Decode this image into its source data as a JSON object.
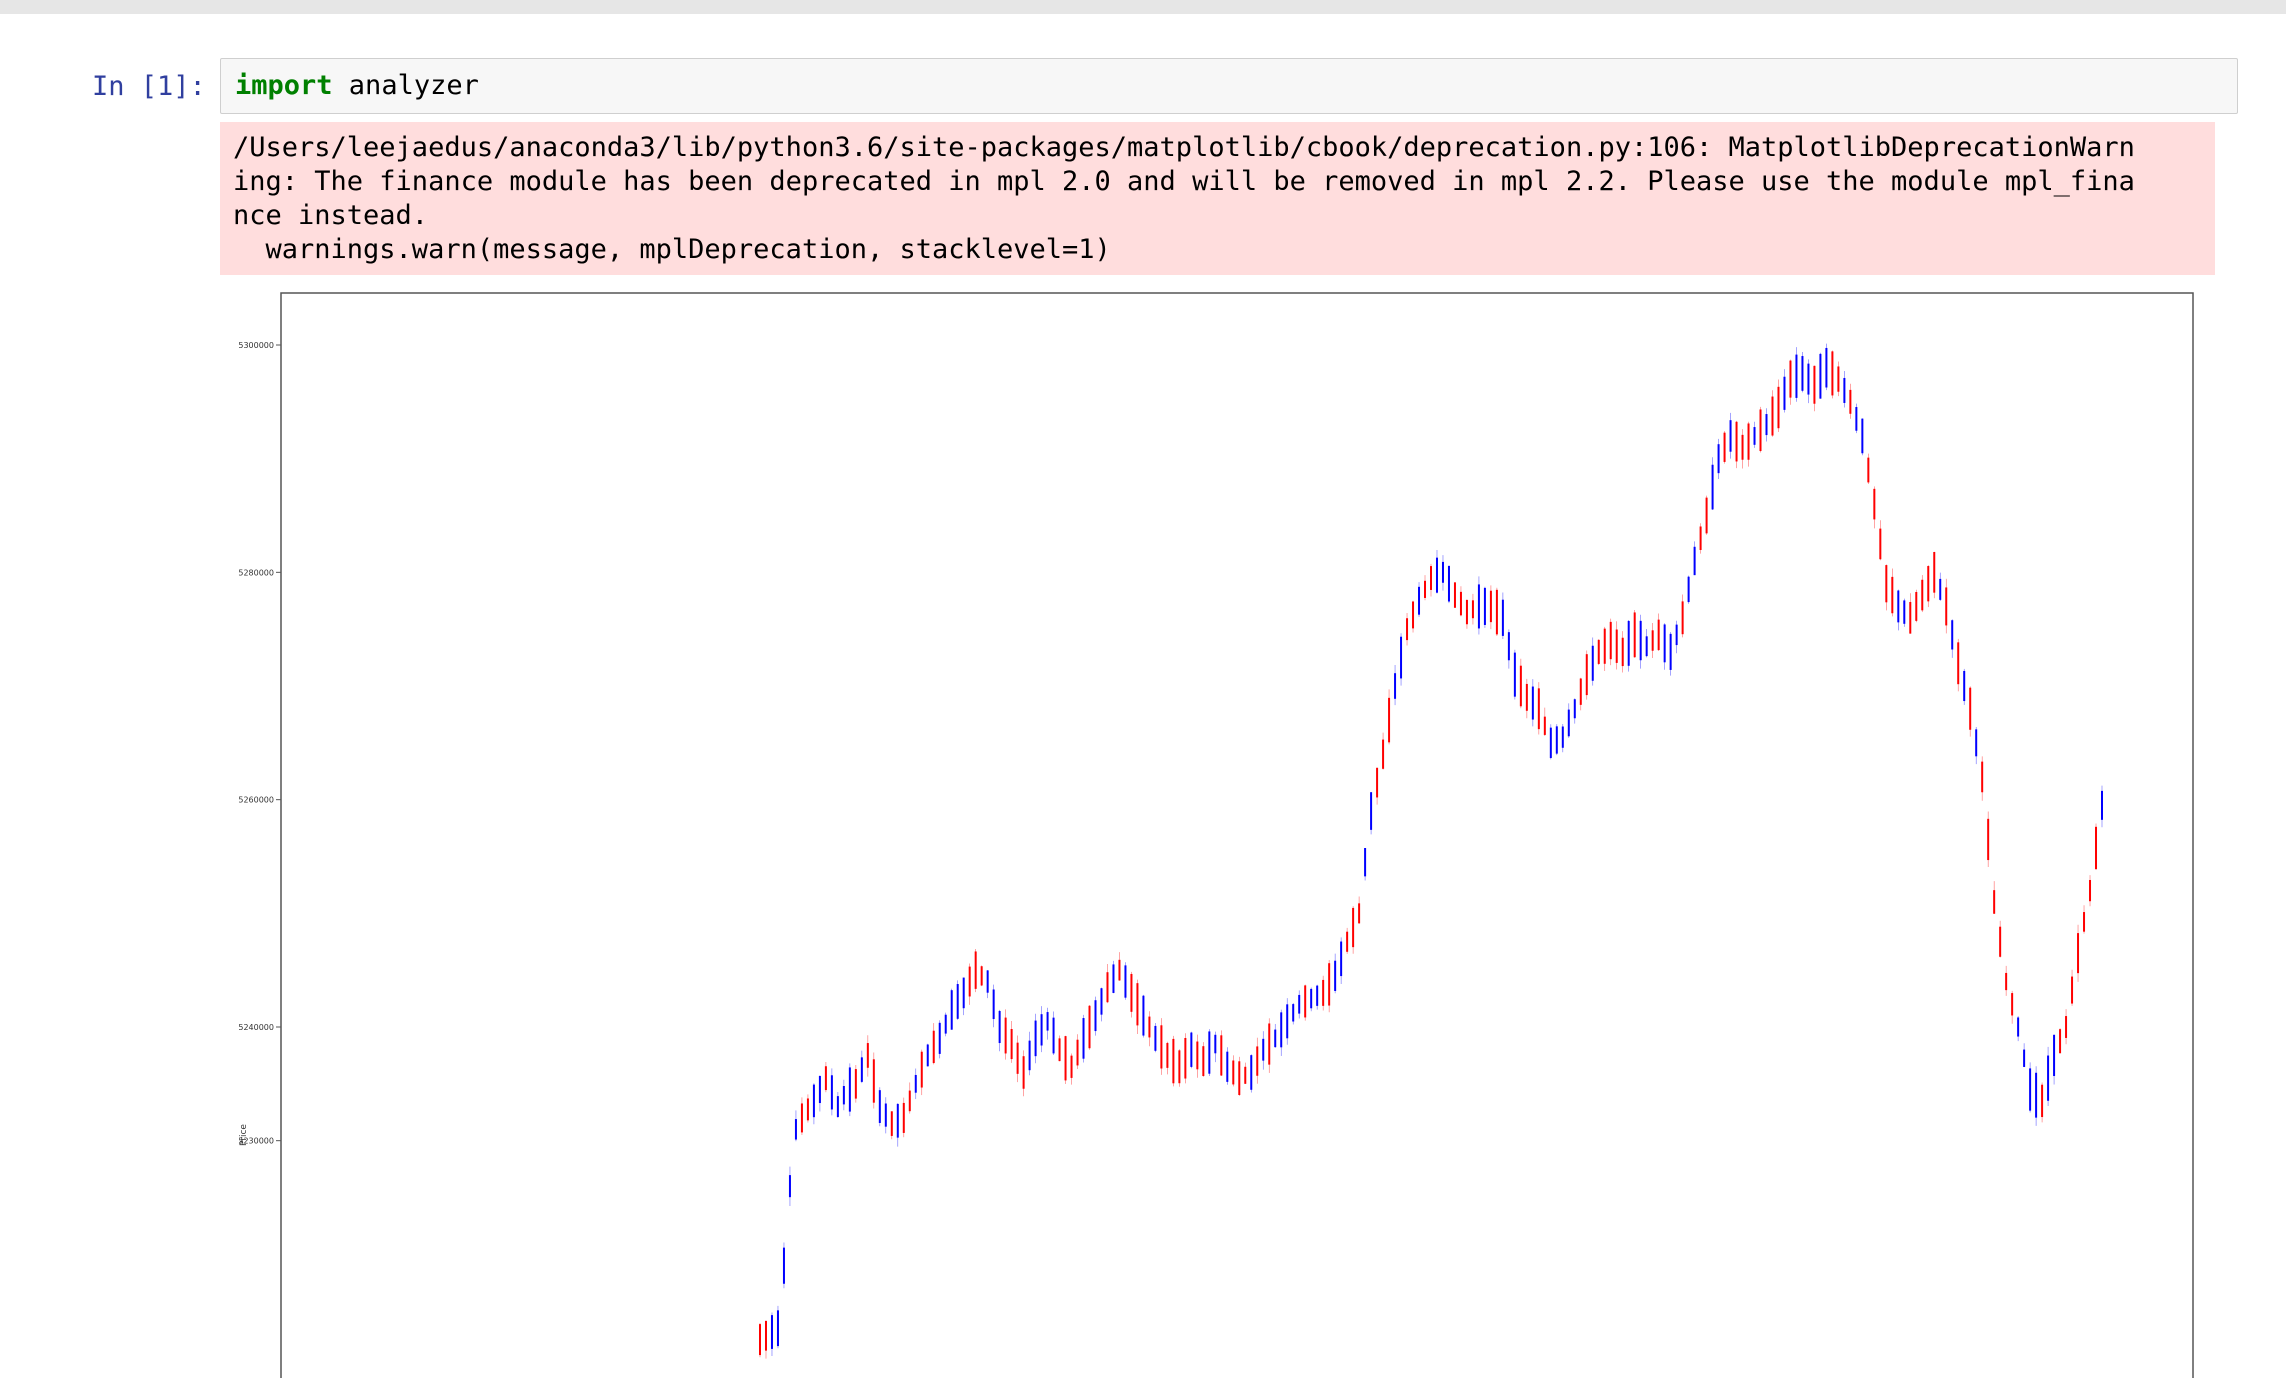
{
  "cell": {
    "prompt": "In [1]:",
    "code_keyword": "import",
    "code_rest": " analyzer"
  },
  "stderr": {
    "lines": [
      "/Users/leejaedus/anaconda3/lib/python3.6/site-packages/matplotlib/cbook/deprecation.py:106: MatplotlibDeprecationWarn",
      "ing: The finance module has been deprecated in mpl 2.0 and will be removed in mpl 2.2. Please use the module mpl_fina",
      "nce instead.",
      "  warnings.warn(message, mplDeprecation, stacklevel=1)"
    ],
    "background": "#ffdddd"
  },
  "colors": {
    "prompt": "#303f9f",
    "keyword": "#008000",
    "up": "#ff0000",
    "down": "#0000ff"
  },
  "chart_data": {
    "type": "candlestick",
    "title": "",
    "xlabel": "",
    "ylabel": "Price",
    "y_ticks": [
      {
        "value": 5230000,
        "label": "5230000"
      },
      {
        "value": 5240000,
        "label": "5240000"
      },
      {
        "value": 5260000,
        "label": "5260000"
      },
      {
        "value": 5280000,
        "label": "5280000"
      },
      {
        "value": 5300000,
        "label": "5300000"
      }
    ],
    "ylim": [
      5213000,
      5304800
    ],
    "grid": false,
    "series_trend": [
      [
        0,
        5212500
      ],
      [
        3,
        5213500
      ],
      [
        4,
        5219000
      ],
      [
        5,
        5226000
      ],
      [
        6,
        5231000
      ],
      [
        7,
        5232000
      ],
      [
        9,
        5233500
      ],
      [
        11,
        5235500
      ],
      [
        13,
        5233000
      ],
      [
        14,
        5234000
      ],
      [
        16,
        5235000
      ],
      [
        18,
        5237500
      ],
      [
        20,
        5233000
      ],
      [
        22,
        5231500
      ],
      [
        24,
        5232000
      ],
      [
        26,
        5235000
      ],
      [
        28,
        5237500
      ],
      [
        30,
        5239000
      ],
      [
        32,
        5241500
      ],
      [
        34,
        5243000
      ],
      [
        36,
        5245000
      ],
      [
        38,
        5244000
      ],
      [
        40,
        5240000
      ],
      [
        42,
        5238500
      ],
      [
        44,
        5236000
      ],
      [
        46,
        5239000
      ],
      [
        48,
        5240500
      ],
      [
        50,
        5238000
      ],
      [
        52,
        5236500
      ],
      [
        54,
        5239000
      ],
      [
        56,
        5241000
      ],
      [
        58,
        5243500
      ],
      [
        60,
        5245000
      ],
      [
        62,
        5243000
      ],
      [
        64,
        5241000
      ],
      [
        66,
        5239000
      ],
      [
        68,
        5237500
      ],
      [
        70,
        5236500
      ],
      [
        72,
        5238000
      ],
      [
        74,
        5237000
      ],
      [
        76,
        5238500
      ],
      [
        78,
        5236500
      ],
      [
        80,
        5235500
      ],
      [
        82,
        5236000
      ],
      [
        84,
        5238000
      ],
      [
        86,
        5239000
      ],
      [
        88,
        5240500
      ],
      [
        90,
        5242000
      ],
      [
        92,
        5242500
      ],
      [
        94,
        5243000
      ],
      [
        96,
        5244500
      ],
      [
        98,
        5247500
      ],
      [
        100,
        5250000
      ],
      [
        102,
        5259000
      ],
      [
        104,
        5264000
      ],
      [
        106,
        5270000
      ],
      [
        108,
        5275000
      ],
      [
        110,
        5277500
      ],
      [
        112,
        5279500
      ],
      [
        114,
        5280000
      ],
      [
        116,
        5278000
      ],
      [
        118,
        5276500
      ],
      [
        120,
        5277000
      ],
      [
        122,
        5277000
      ],
      [
        124,
        5276000
      ],
      [
        126,
        5271000
      ],
      [
        128,
        5269000
      ],
      [
        130,
        5268000
      ],
      [
        132,
        5265000
      ],
      [
        134,
        5265500
      ],
      [
        136,
        5268000
      ],
      [
        138,
        5271000
      ],
      [
        140,
        5273000
      ],
      [
        142,
        5274000
      ],
      [
        144,
        5273000
      ],
      [
        146,
        5274500
      ],
      [
        148,
        5273500
      ],
      [
        150,
        5274500
      ],
      [
        152,
        5273000
      ],
      [
        154,
        5276000
      ],
      [
        156,
        5281000
      ],
      [
        158,
        5285000
      ],
      [
        160,
        5290000
      ],
      [
        162,
        5292000
      ],
      [
        164,
        5291000
      ],
      [
        166,
        5292000
      ],
      [
        168,
        5293000
      ],
      [
        170,
        5294500
      ],
      [
        172,
        5297000
      ],
      [
        174,
        5297500
      ],
      [
        176,
        5296500
      ],
      [
        178,
        5298000
      ],
      [
        180,
        5297000
      ],
      [
        182,
        5295000
      ],
      [
        184,
        5292000
      ],
      [
        186,
        5286000
      ],
      [
        188,
        5279000
      ],
      [
        190,
        5277000
      ],
      [
        192,
        5276000
      ],
      [
        194,
        5278000
      ],
      [
        196,
        5280000
      ],
      [
        198,
        5277000
      ],
      [
        200,
        5272000
      ],
      [
        202,
        5268000
      ],
      [
        204,
        5262000
      ],
      [
        206,
        5251000
      ],
      [
        208,
        5244000
      ],
      [
        210,
        5240000
      ],
      [
        212,
        5234500
      ],
      [
        214,
        5233500
      ],
      [
        216,
        5237500
      ],
      [
        218,
        5240000
      ],
      [
        220,
        5246500
      ],
      [
        222,
        5252000
      ],
      [
        224,
        5259500
      ]
    ],
    "candle_count": 225
  }
}
